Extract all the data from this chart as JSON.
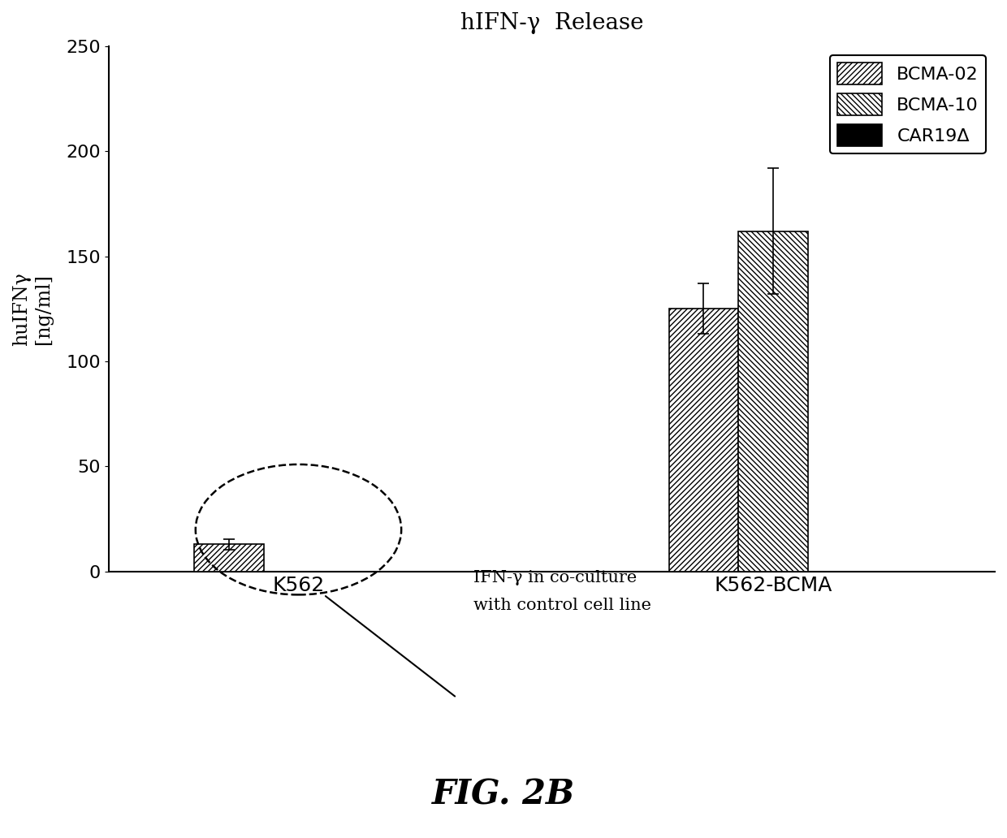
{
  "title": "hIFN-γ  Release",
  "ylabel_line1": "huIFNγ",
  "ylabel_line2": "[ng/ml]",
  "groups": [
    "K562",
    "K562-BCMA"
  ],
  "series": [
    "BCMA-02",
    "BCMA-10",
    "CAR19Δ"
  ],
  "values": {
    "K562": [
      13.0,
      0.0,
      0.0
    ],
    "K562-BCMA": [
      125.0,
      162.0,
      0.0
    ]
  },
  "errors": {
    "K562": [
      2.5,
      0.0,
      0.0
    ],
    "K562-BCMA": [
      12.0,
      30.0,
      0.0
    ]
  },
  "ylim": [
    0,
    250
  ],
  "yticks": [
    0,
    50,
    100,
    150,
    200,
    250
  ],
  "bar_width": 0.22,
  "group_positions": [
    1.0,
    2.5
  ],
  "hatch_bcma02": "/////",
  "hatch_bcma10": "\\\\\\\\\\",
  "hatch_car19": ".....",
  "fig_label": "FIG. 2B",
  "annotation_line1": "IFN-γ in co-culture",
  "annotation_line2": "with control cell line",
  "background_color": "#ffffff",
  "bar_edge_color": "#000000"
}
